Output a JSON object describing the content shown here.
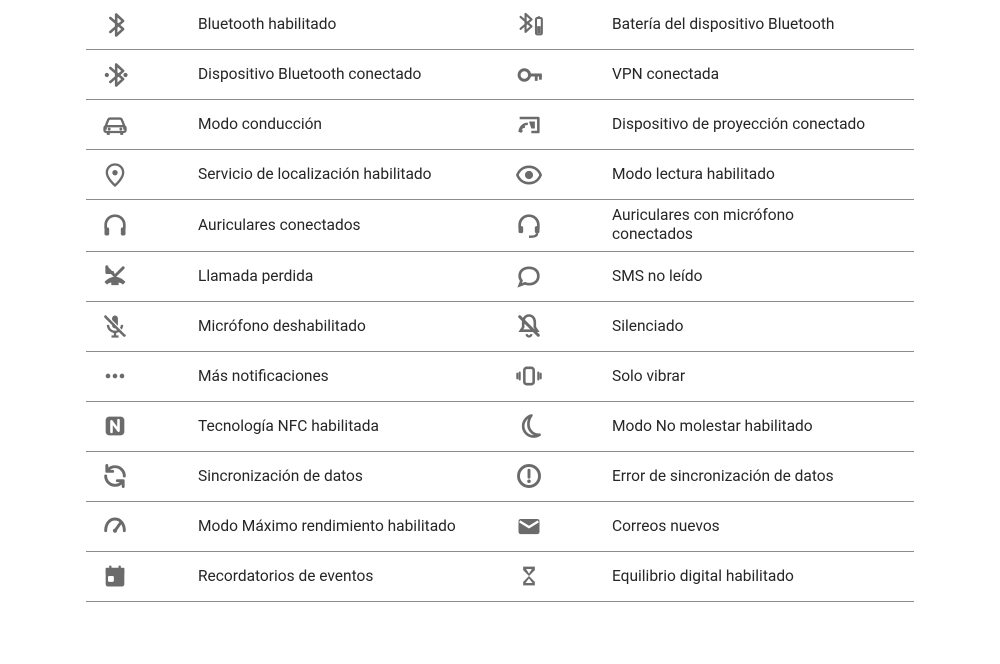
{
  "type": "table",
  "icon_color": "#6b6b6b",
  "text_color": "#262626",
  "divider_color": "#8c8c8c",
  "background_color": "#ffffff",
  "label_fontsize": 15.5,
  "rows": [
    {
      "left": {
        "icon": "bluetooth-icon",
        "label": "Bluetooth habilitado"
      },
      "right": {
        "icon": "bluetooth-battery-icon",
        "label": "Batería del dispositivo Bluetooth"
      }
    },
    {
      "left": {
        "icon": "bluetooth-connected-icon",
        "label": "Dispositivo Bluetooth conectado"
      },
      "right": {
        "icon": "vpn-key-icon",
        "label": "VPN conectada"
      }
    },
    {
      "left": {
        "icon": "car-icon",
        "label": "Modo conducción"
      },
      "right": {
        "icon": "cast-connected-icon",
        "label": "Dispositivo de proyección conectado"
      }
    },
    {
      "left": {
        "icon": "location-pin-icon",
        "label": "Servicio de localización habilitado"
      },
      "right": {
        "icon": "eye-icon",
        "label": "Modo lectura habilitado"
      }
    },
    {
      "left": {
        "icon": "headphones-icon",
        "label": "Auriculares conectados"
      },
      "right": {
        "icon": "headset-icon",
        "label": "Auriculares con micrófono conectados"
      }
    },
    {
      "left": {
        "icon": "missed-call-icon",
        "label": "Llamada perdida"
      },
      "right": {
        "icon": "sms-bubble-icon",
        "label": "SMS no leído"
      }
    },
    {
      "left": {
        "icon": "mic-off-icon",
        "label": "Micrófono deshabilitado"
      },
      "right": {
        "icon": "bell-off-icon",
        "label": "Silenciado"
      }
    },
    {
      "left": {
        "icon": "more-dots-icon",
        "label": "Más notificaciones"
      },
      "right": {
        "icon": "vibrate-icon",
        "label": "Solo vibrar"
      }
    },
    {
      "left": {
        "icon": "nfc-icon",
        "label": "Tecnología NFC habilitada"
      },
      "right": {
        "icon": "moon-icon",
        "label": "Modo No molestar habilitado"
      }
    },
    {
      "left": {
        "icon": "sync-icon",
        "label": "Sincronización de datos"
      },
      "right": {
        "icon": "sync-error-icon",
        "label": "Error de sincronización de datos"
      }
    },
    {
      "left": {
        "icon": "performance-gauge-icon",
        "label": "Modo Máximo rendimiento habilitado"
      },
      "right": {
        "icon": "mail-icon",
        "label": "Correos nuevos"
      }
    },
    {
      "left": {
        "icon": "calendar-event-icon",
        "label": "Recordatorios de eventos"
      },
      "right": {
        "icon": "hourglass-icon",
        "label": "Equilibrio digital habilitado"
      }
    }
  ]
}
